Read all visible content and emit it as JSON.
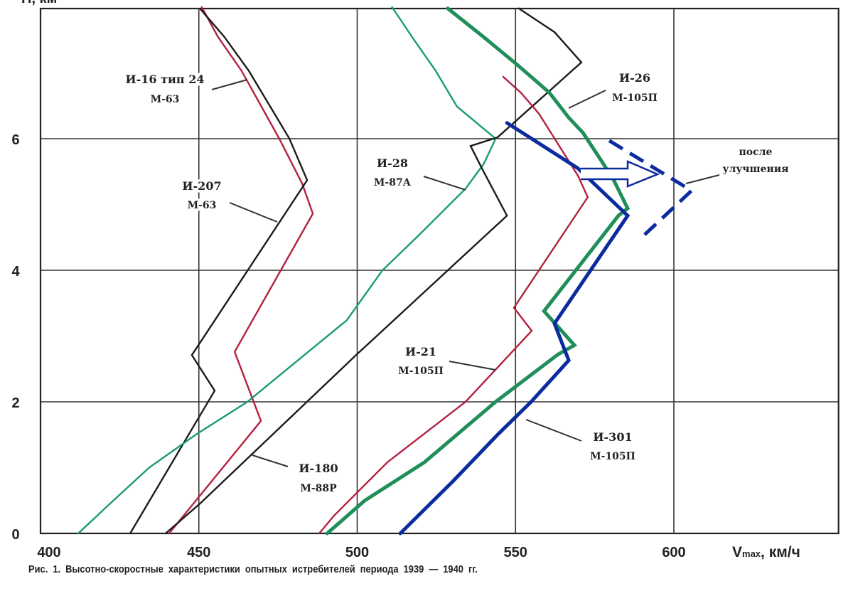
{
  "chart_data": {
    "type": "line",
    "title": "",
    "caption": "Рис. 1. Высотно-скоростные характеристики опытных истребителей периода 1939 — 1940 гг.",
    "xlabel": "Vmax, км/ч",
    "xlabel_main": "V",
    "xlabel_sub": "max",
    "xlabel_unit": ", км/ч",
    "ylabel": "H, км",
    "xlim": [
      400,
      652
    ],
    "ylim": [
      0,
      8
    ],
    "xticks": [
      "400",
      "450",
      "500",
      "550",
      "600"
    ],
    "yticks": [
      "0",
      "2",
      "4",
      "6"
    ],
    "grid": true,
    "legend": "none (inline labels)",
    "colors": {
      "black": "#1c1c1c",
      "red": "#b3213f",
      "teal": "#1a9a78",
      "green": "#1f8e58",
      "blue": "#0b2b9e"
    },
    "series": [
      {
        "name": "И-16 тип 24 М-63",
        "label1": "И-16 тип 24",
        "label2": "М-63",
        "color": "#b3213f",
        "style": "thin",
        "points": [
          [
            440.6,
            0
          ],
          [
            469.6,
            1.71
          ],
          [
            461.3,
            2.76
          ],
          [
            486,
            4.86
          ],
          [
            482.6,
            5.32
          ],
          [
            475.4,
            6.0
          ],
          [
            463.5,
            7.03
          ],
          [
            456,
            7.55
          ],
          [
            450.9,
            8.0
          ]
        ]
      },
      {
        "name": "И-207 М-63",
        "label1": "И-207",
        "label2": "М-63",
        "color": "#1c1c1c",
        "style": "thin",
        "points": [
          [
            428.3,
            0
          ],
          [
            455,
            2.17
          ],
          [
            447.8,
            2.71
          ],
          [
            484.2,
            5.37
          ],
          [
            478.6,
            6.0
          ],
          [
            465.8,
            7.03
          ],
          [
            458,
            7.55
          ],
          [
            450.5,
            7.97
          ]
        ]
      },
      {
        "name": "И-28 М-87А",
        "label1": "И-28",
        "label2": "М-87А",
        "color": "#1a9a78",
        "style": "thin",
        "points": [
          [
            411.9,
            0
          ],
          [
            423,
            0.5
          ],
          [
            434.3,
            1
          ],
          [
            449,
            1.5
          ],
          [
            465.3,
            2
          ],
          [
            481,
            2.62
          ],
          [
            496.7,
            3.24
          ],
          [
            508,
            4
          ],
          [
            519.6,
            4.54
          ],
          [
            534.2,
            5.24
          ],
          [
            540,
            5.62
          ],
          [
            543.7,
            6.0
          ],
          [
            531.5,
            6.49
          ],
          [
            524.8,
            7.03
          ],
          [
            518,
            7.5
          ],
          [
            511,
            8.0
          ]
        ]
      },
      {
        "name": "И-180 М-88Р",
        "label1": "И-180",
        "label2": "М-88Р",
        "color": "#1c1c1c",
        "style": "thin",
        "points": [
          [
            439.5,
            0
          ],
          [
            450.5,
            0.46
          ],
          [
            499.4,
            2.7
          ],
          [
            547.3,
            4.83
          ],
          [
            539.8,
            5.51
          ],
          [
            535.8,
            5.89
          ],
          [
            544.3,
            6.02
          ],
          [
            570.8,
            7.16
          ],
          [
            562.3,
            7.62
          ],
          [
            551,
            7.98
          ]
        ]
      },
      {
        "name": "И-21 М-105П",
        "label1": "И-21",
        "label2": "М-105П",
        "color": "#b3213f",
        "style": "thin",
        "points": [
          [
            488,
            0
          ],
          [
            492.7,
            0.27
          ],
          [
            509.5,
            1.08
          ],
          [
            534.2,
            2
          ],
          [
            543.7,
            2.49
          ],
          [
            555.1,
            3.08
          ],
          [
            549.5,
            3.43
          ],
          [
            572.8,
            5.11
          ],
          [
            569.7,
            5.44
          ],
          [
            563,
            5.95
          ],
          [
            557.4,
            6.38
          ],
          [
            551.7,
            6.7
          ],
          [
            546.1,
            6.94
          ]
        ]
      },
      {
        "name": "И-26 М-105П",
        "label1": "И-26",
        "label2": "М-105П",
        "color": "#1f8e58",
        "style": "thick",
        "points": [
          [
            490.5,
            0
          ],
          [
            502.4,
            0.5
          ],
          [
            521.2,
            1.08
          ],
          [
            543.7,
            2
          ],
          [
            563.4,
            2.72
          ],
          [
            568.6,
            2.86
          ],
          [
            559,
            3.38
          ],
          [
            582.5,
            4.83
          ],
          [
            585.4,
            4.94
          ],
          [
            581,
            5.37
          ],
          [
            577.3,
            5.65
          ],
          [
            571.3,
            6.09
          ],
          [
            566.8,
            6.32
          ],
          [
            560.7,
            6.7
          ],
          [
            550.4,
            7.13
          ],
          [
            539.8,
            7.55
          ],
          [
            528.6,
            7.98
          ]
        ]
      },
      {
        "name": "И-301 М-105П",
        "label1": "И-301",
        "label2": "М-105П",
        "color": "#0b2b9e",
        "style": "thick",
        "points": [
          [
            513.6,
            0
          ],
          [
            530.2,
            0.79
          ],
          [
            544.3,
            1.5
          ],
          [
            554.9,
            2
          ],
          [
            566.8,
            2.63
          ],
          [
            562.3,
            3.19
          ],
          [
            585.4,
            4.83
          ],
          [
            569.7,
            5.55
          ],
          [
            547.3,
            6.24
          ]
        ]
      },
      {
        "name": "после улучшения",
        "label1": "после",
        "label2": "улучшения",
        "color": "#0b2b9e",
        "style": "dashed",
        "points": [
          [
            579.6,
            5.97
          ],
          [
            605.6,
            5.21
          ],
          [
            590.3,
            4.52
          ]
        ]
      }
    ]
  }
}
